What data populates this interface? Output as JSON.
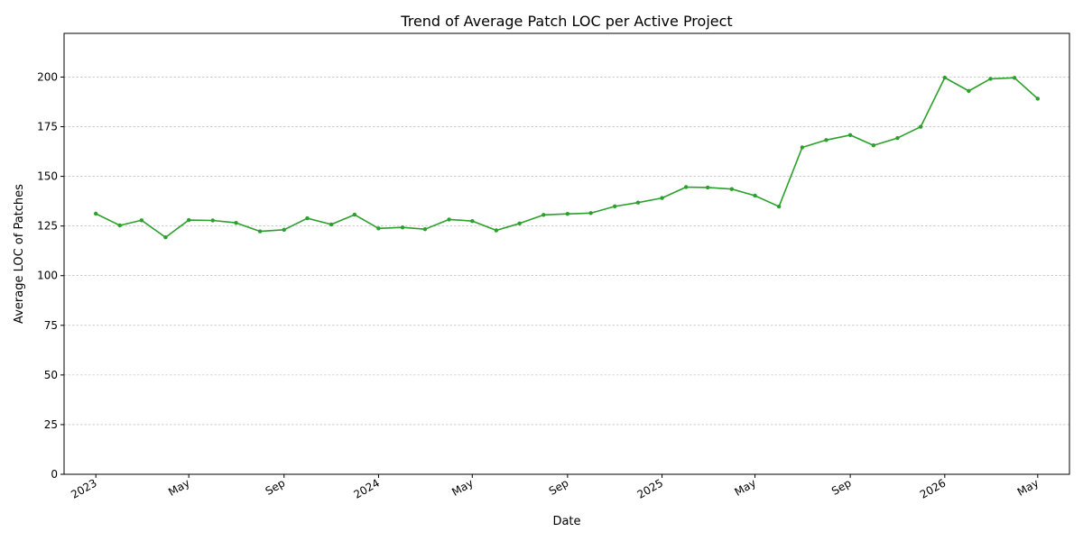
{
  "chart_data": {
    "type": "line",
    "title": "Trend of Average Patch LOC per Active Project",
    "xlabel": "Date",
    "ylabel": "Average LOC of Patches",
    "ylim": [
      0,
      222
    ],
    "yticks": [
      0,
      25,
      50,
      75,
      100,
      125,
      150,
      175,
      200
    ],
    "xlim": [
      "2022-11-21",
      "2026-06-11"
    ],
    "xticks": [
      {
        "date": "2023-01-01",
        "label": "2023"
      },
      {
        "date": "2023-05-01",
        "label": "May"
      },
      {
        "date": "2023-09-01",
        "label": "Sep"
      },
      {
        "date": "2024-01-01",
        "label": "2024"
      },
      {
        "date": "2024-05-01",
        "label": "May"
      },
      {
        "date": "2024-09-01",
        "label": "Sep"
      },
      {
        "date": "2025-01-01",
        "label": "2025"
      },
      {
        "date": "2025-05-01",
        "label": "May"
      },
      {
        "date": "2025-09-01",
        "label": "Sep"
      },
      {
        "date": "2026-01-01",
        "label": "2026"
      },
      {
        "date": "2026-05-01",
        "label": "May"
      }
    ],
    "grid": "y-dashed",
    "line_color": "#2ca02c",
    "series": [
      {
        "x": [
          "2023-01-01",
          "2023-02-01",
          "2023-03-01",
          "2023-04-01",
          "2023-05-01",
          "2023-06-01",
          "2023-07-01",
          "2023-08-01",
          "2023-09-01",
          "2023-10-01",
          "2023-11-01",
          "2023-12-01",
          "2024-01-01",
          "2024-02-01",
          "2024-03-01",
          "2024-04-01",
          "2024-05-01",
          "2024-06-01",
          "2024-07-01",
          "2024-08-01",
          "2024-09-01",
          "2024-10-01",
          "2024-11-01",
          "2024-12-01",
          "2025-01-01",
          "2025-02-01",
          "2025-03-01",
          "2025-04-01",
          "2025-05-01",
          "2025-06-01",
          "2025-07-01",
          "2025-08-01",
          "2025-09-01",
          "2025-10-01",
          "2025-11-01",
          "2025-12-01",
          "2026-01-01",
          "2026-02-01",
          "2026-03-01",
          "2026-04-01",
          "2026-05-01"
        ],
        "values": [
          131.2,
          125.3,
          127.9,
          119.3,
          128.0,
          127.8,
          126.6,
          122.3,
          123.1,
          128.9,
          125.8,
          130.7,
          123.8,
          124.3,
          123.4,
          128.3,
          127.5,
          122.8,
          126.3,
          130.6,
          131.1,
          131.5,
          134.9,
          136.8,
          139.1,
          144.6,
          144.4,
          143.6,
          140.3,
          134.8,
          164.6,
          168.3,
          170.8,
          165.6,
          169.3,
          175.0,
          199.7,
          193.0,
          199.1,
          199.6,
          189.1
        ]
      }
    ]
  }
}
